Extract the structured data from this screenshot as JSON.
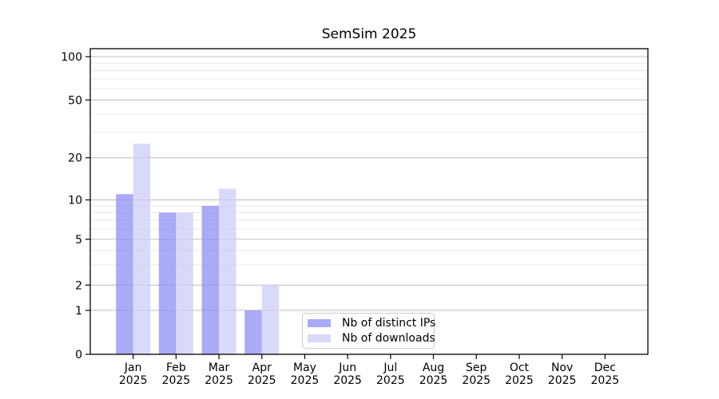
{
  "chart_data": {
    "type": "bar",
    "title": "SemSim 2025",
    "categories": [
      "Jan",
      "Feb",
      "Mar",
      "Apr",
      "May",
      "Jun",
      "Jul",
      "Aug",
      "Sep",
      "Oct",
      "Nov",
      "Dec"
    ],
    "category_year": "2025",
    "series": [
      {
        "name": "Nb of distinct IPs",
        "color": "#8e8ef4",
        "legend_color": "#aaaaf8",
        "opacity": 0.75,
        "values": [
          11,
          8,
          9,
          1,
          0,
          0,
          0,
          0,
          0,
          0,
          0,
          0
        ]
      },
      {
        "name": "Nb of downloads",
        "color": "#ccccf8",
        "legend_color": "#d9d9f8",
        "opacity": 0.75,
        "values": [
          25,
          8,
          12,
          2,
          0,
          0,
          0,
          0,
          0,
          0,
          0,
          0
        ]
      }
    ],
    "yaxis": {
      "scale": "symlog",
      "ticks": [
        0,
        1,
        2,
        5,
        10,
        20,
        50,
        100
      ],
      "minor_ticks": [
        3,
        4,
        6,
        7,
        8,
        9,
        30,
        40,
        60,
        70,
        80,
        90
      ],
      "range_top_value": 110
    },
    "grid": "horizontal",
    "legend_position": "lower center",
    "colors": {
      "major_grid": "#bcbcbc",
      "minor_grid": "#e8e8e8",
      "spine": "#000000"
    }
  }
}
